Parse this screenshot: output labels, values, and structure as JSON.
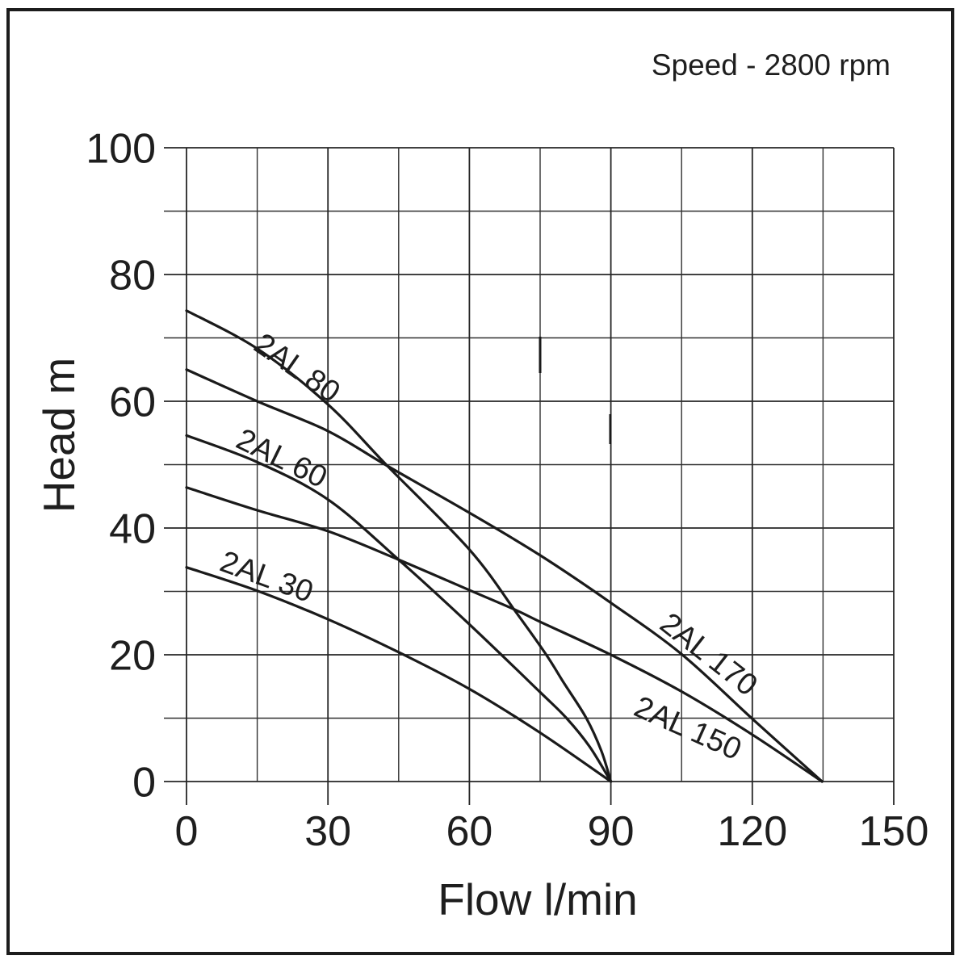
{
  "header": {
    "speed_label": "Speed - 2800 rpm"
  },
  "chart_data": {
    "type": "line",
    "title": "Speed - 2800 rpm",
    "xlabel": "Flow l/min",
    "ylabel": "Head m",
    "xlim": [
      0,
      150
    ],
    "ylim": [
      0,
      100
    ],
    "x_ticks": [
      0,
      30,
      60,
      90,
      120,
      150
    ],
    "y_ticks": [
      0,
      20,
      40,
      60,
      80,
      100
    ],
    "x_grid_step": 15,
    "y_grid_step": 10,
    "grid": true,
    "legend": "none (curves labelled inline)",
    "colors": {
      "curve": "#1a1a1a",
      "grid": "#262626",
      "background": "#ffffff"
    },
    "series": [
      {
        "name": "2AL 80",
        "points": [
          [
            0,
            74.3
          ],
          [
            15,
            68.3
          ],
          [
            30,
            59.5
          ],
          [
            42.6,
            49.8
          ],
          [
            60,
            36.6
          ],
          [
            70,
            26.6
          ],
          [
            76.3,
            20
          ],
          [
            80,
            15.6
          ],
          [
            84.8,
            10
          ],
          [
            88,
            4.8
          ],
          [
            90,
            0
          ]
        ]
      },
      {
        "name": "2AL 170",
        "points": [
          [
            0,
            65
          ],
          [
            15,
            60
          ],
          [
            30,
            55.3
          ],
          [
            42.6,
            49.8
          ],
          [
            60,
            42.4
          ],
          [
            75,
            35.7
          ],
          [
            90,
            28.2
          ],
          [
            105,
            20.1
          ],
          [
            120,
            9.9
          ],
          [
            134.8,
            0
          ]
        ]
      },
      {
        "name": "2AL 60",
        "points": [
          [
            0,
            54.6
          ],
          [
            15,
            50.4
          ],
          [
            30,
            44.5
          ],
          [
            45,
            35
          ],
          [
            60,
            24.8
          ],
          [
            75,
            14.1
          ],
          [
            80.6,
            10
          ],
          [
            85.5,
            5.5
          ],
          [
            90,
            0
          ]
        ]
      },
      {
        "name": "2AL 150",
        "points": [
          [
            0,
            46.4
          ],
          [
            15,
            42.8
          ],
          [
            30,
            39.5
          ],
          [
            45,
            35
          ],
          [
            60,
            30.2
          ],
          [
            70,
            27
          ],
          [
            75,
            25.2
          ],
          [
            90,
            20
          ],
          [
            105,
            14.2
          ],
          [
            120,
            7.4
          ],
          [
            134.8,
            0
          ]
        ]
      },
      {
        "name": "2AL 30",
        "points": [
          [
            0,
            33.8
          ],
          [
            15,
            30.1
          ],
          [
            30,
            25.6
          ],
          [
            45,
            20.4
          ],
          [
            60,
            14.6
          ],
          [
            75,
            7.7
          ],
          [
            90,
            0
          ]
        ]
      }
    ],
    "annotations": [
      {
        "text": "2AL 80",
        "x": 13.9,
        "y": 68.3,
        "angle": 35
      },
      {
        "text": "2AL 60",
        "x": 10.1,
        "y": 52.9,
        "angle": 26
      },
      {
        "text": "2AL 30",
        "x": 6.7,
        "y": 33.4,
        "angle": 20
      },
      {
        "text": "2AL 170",
        "x": 100.0,
        "y": 24.3,
        "angle": 38
      },
      {
        "text": "2AL 150",
        "x": 94.5,
        "y": 10.6,
        "angle": 24
      }
    ]
  }
}
